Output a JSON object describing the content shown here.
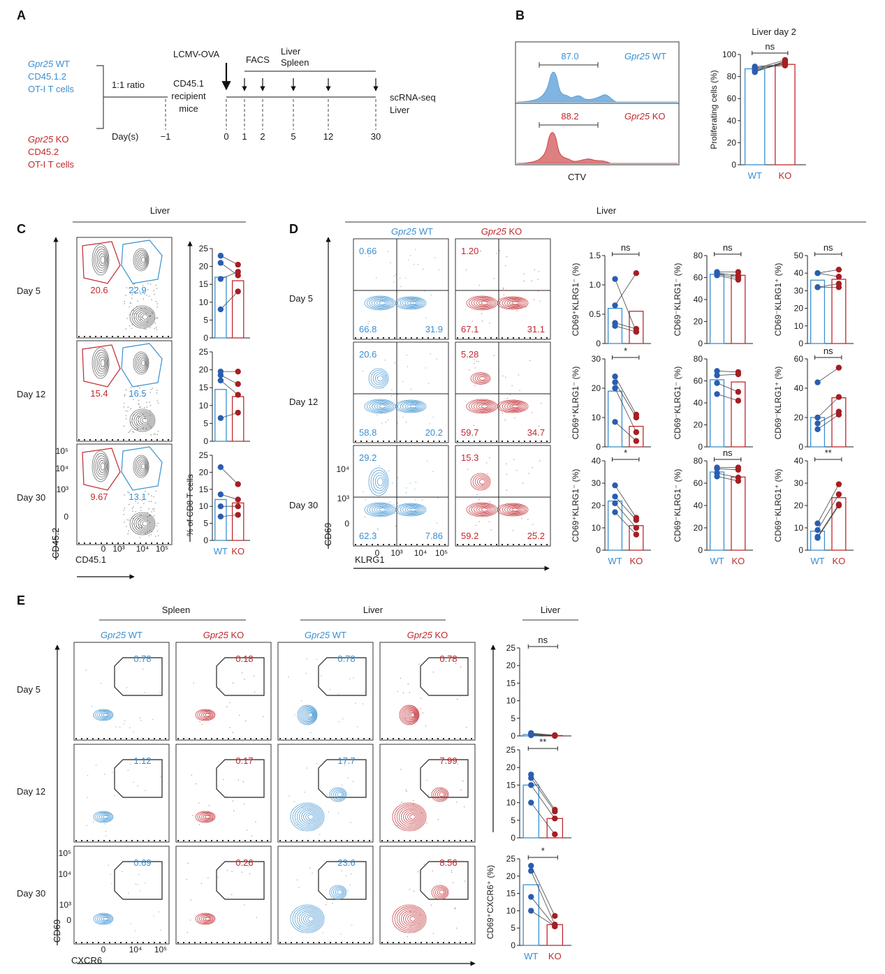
{
  "colors": {
    "wt": "#3a8fd0",
    "ko": "#c0282e",
    "wt_dot": "#2a5db0",
    "ko_dot": "#a51e22",
    "gate": "#222222"
  },
  "panels": {
    "A": {
      "label": "A",
      "wt_gene": "Gpr25",
      "wt_suffix": " WT",
      "wt_line2": "CD45.1.2",
      "wt_line3": "OT-I T cells",
      "ko_gene": "Gpr25",
      "ko_suffix": " KO",
      "ko_line2": "CD45.2",
      "ko_line3": "OT-I T cells",
      "ratio": "1:1 ratio",
      "days_label": "Day(s)",
      "recipient": [
        "CD45.1",
        "recipient",
        "mice"
      ],
      "infection": "LCMV-OVA",
      "facs": "FACS",
      "liver": "Liver",
      "spleen": "Spleen",
      "scrna": [
        "scRNA-seq",
        "Liver"
      ],
      "days": [
        "−1",
        "0",
        "1",
        "2",
        "5",
        "12",
        "30"
      ]
    },
    "B": {
      "label": "B",
      "wt_gene": "Gpr25",
      "wt_suffix": " WT",
      "ko_gene": "Gpr25",
      "ko_suffix": " KO",
      "wt_value": "87.0",
      "ko_value": "88.2",
      "xaxis": "CTV",
      "chart_title": "Liver day 2",
      "ylabel": "Proliferating cells (%)",
      "sig": "ns",
      "yticks": [
        "0",
        "20",
        "40",
        "60",
        "80",
        "100"
      ],
      "xcats": [
        "WT",
        "KO"
      ]
    },
    "C": {
      "label": "C",
      "header": "Liver",
      "rows": [
        "Day 5",
        "Day 12",
        "Day 30"
      ],
      "ko_vals": [
        "20.6",
        "15.4",
        "9.67"
      ],
      "wt_vals": [
        "22.9",
        "16.5",
        "13.1"
      ],
      "yaxis": "CD45.2",
      "xaxis": "CD45.1",
      "yticks": [
        "10⁵",
        "10⁴",
        "10³",
        "0"
      ],
      "xticks": [
        "0",
        "10³",
        "10⁴",
        "10⁵"
      ],
      "bar_ylabel": "% of CD8 T cells",
      "bar_yticks": [
        "0",
        "5",
        "10",
        "15",
        "20",
        "25"
      ],
      "xcats": [
        "WT",
        "KO"
      ]
    },
    "D": {
      "label": "D",
      "header": "Liver",
      "wt_gene": "Gpr25",
      "wt_suffix": " WT",
      "ko_gene": "Gpr25",
      "ko_suffix": " KO",
      "rows": [
        "Day 5",
        "Day 12",
        "Day 30"
      ],
      "wt_q": [
        [
          "0.66",
          "66.8",
          "31.9"
        ],
        [
          "20.6",
          "58.8",
          "20.2"
        ],
        [
          "29.2",
          "62.3",
          "7.86"
        ]
      ],
      "ko_q": [
        [
          "1.20",
          "67.1",
          "31.1"
        ],
        [
          "5.28",
          "59.7",
          "34.7"
        ],
        [
          "15.3",
          "59.2",
          "25.2"
        ]
      ],
      "yaxis": "CD69",
      "xaxis": "KLRG1",
      "yticks": [
        "10⁴",
        "10³",
        "0"
      ],
      "xticks": [
        "0",
        "10³",
        "10⁴",
        "10⁵"
      ],
      "xcats": [
        "WT",
        "KO"
      ]
    },
    "E": {
      "label": "E",
      "spleen": "Spleen",
      "liver": "Liver",
      "liver_chart": "Liver",
      "wt_gene": "Gpr25",
      "wt_suffix": " WT",
      "ko_gene": "Gpr25",
      "ko_suffix": " KO",
      "rows": [
        "Day 5",
        "Day 12",
        "Day 30"
      ],
      "vals": [
        [
          "0.78",
          "0.18",
          "0.78",
          "0.78"
        ],
        [
          "1.12",
          "0.17",
          "17.7",
          "7.99"
        ],
        [
          "0.69",
          "0.26",
          "23.6",
          "8.56"
        ]
      ],
      "yaxis": "CD69",
      "xaxis": "CXCR6",
      "yticks": [
        "10⁵",
        "10⁴",
        "10³",
        "0"
      ],
      "xticks": [
        "0",
        "10⁴",
        "10⁵"
      ],
      "xcats": [
        "WT",
        "KO"
      ]
    }
  },
  "chart_data": [
    {
      "type": "bar",
      "panel": "B",
      "title": "Liver day 2",
      "ylabel": "Proliferating cells (%)",
      "ylim": [
        0,
        100
      ],
      "yticks": [
        0,
        20,
        40,
        60,
        80,
        100
      ],
      "categories": [
        "WT",
        "KO"
      ],
      "values": [
        87,
        91
      ],
      "points": [
        [
          85,
          92
        ],
        [
          88,
          90
        ],
        [
          86,
          93
        ],
        [
          89,
          91
        ],
        [
          84,
          94
        ],
        [
          87,
          95
        ]
      ],
      "significance": "ns"
    },
    {
      "type": "bar",
      "panel": "C",
      "row": "Day 5",
      "ylabel": "% of CD8 T cells",
      "ylim": [
        0,
        25
      ],
      "yticks": [
        0,
        5,
        10,
        15,
        20,
        25
      ],
      "categories": [
        "WT",
        "KO"
      ],
      "values": [
        17,
        16
      ],
      "points": [
        [
          23,
          20.5
        ],
        [
          21,
          17.5
        ],
        [
          16.5,
          18.5
        ],
        [
          8,
          13
        ]
      ],
      "significance": ""
    },
    {
      "type": "bar",
      "panel": "C",
      "row": "Day 12",
      "ylabel": "% of CD8 T cells",
      "ylim": [
        0,
        25
      ],
      "yticks": [
        0,
        5,
        10,
        15,
        20,
        25
      ],
      "categories": [
        "WT",
        "KO"
      ],
      "values": [
        14.5,
        12.5
      ],
      "points": [
        [
          19.5,
          19.5
        ],
        [
          18.5,
          16
        ],
        [
          17,
          13
        ],
        [
          6.5,
          8
        ]
      ],
      "significance": ""
    },
    {
      "type": "bar",
      "panel": "C",
      "row": "Day 30",
      "ylabel": "% of CD8 T cells",
      "ylim": [
        0,
        25
      ],
      "yticks": [
        0,
        5,
        10,
        15,
        20,
        25
      ],
      "categories": [
        "WT",
        "KO"
      ],
      "values": [
        12,
        11
      ],
      "points": [
        [
          21.5,
          16.5
        ],
        [
          13.5,
          12
        ],
        [
          10,
          10
        ],
        [
          7,
          7.5
        ]
      ],
      "significance": ""
    },
    {
      "type": "bar",
      "panel": "D",
      "row": "Day 5",
      "ylabel": "CD69⁺KLRG1⁻ (%)",
      "ylim": [
        0,
        1.5
      ],
      "yticks": [
        0,
        0.5,
        1.0,
        1.5
      ],
      "ytick_labels": [
        "0",
        "0.5",
        "1.0",
        "1.5"
      ],
      "categories": [
        "WT",
        "KO"
      ],
      "values": [
        0.6,
        0.55
      ],
      "points": [
        [
          1.1,
          0.2
        ],
        [
          0.65,
          1.2
        ],
        [
          0.35,
          0.25
        ],
        [
          0.3,
          0.2
        ]
      ],
      "significance": "ns"
    },
    {
      "type": "bar",
      "panel": "D",
      "row": "Day 5",
      "ylabel": "CD69⁻KLRG1⁻ (%)",
      "ylim": [
        0,
        80
      ],
      "yticks": [
        0,
        20,
        40,
        60,
        80
      ],
      "categories": [
        "WT",
        "KO"
      ],
      "values": [
        63,
        62
      ],
      "points": [
        [
          65,
          65
        ],
        [
          64,
          62
        ],
        [
          63,
          60
        ],
        [
          62,
          58
        ]
      ],
      "significance": "ns"
    },
    {
      "type": "bar",
      "panel": "D",
      "row": "Day 5",
      "ylabel": "CD69⁻KLRG1⁺ (%)",
      "ylim": [
        0,
        50
      ],
      "yticks": [
        0,
        10,
        20,
        30,
        40,
        50
      ],
      "categories": [
        "WT",
        "KO"
      ],
      "values": [
        36,
        36.5
      ],
      "points": [
        [
          40,
          42
        ],
        [
          40,
          38
        ],
        [
          32,
          34
        ],
        [
          32,
          32
        ]
      ],
      "significance": "ns"
    },
    {
      "type": "bar",
      "panel": "D",
      "row": "Day 12",
      "ylabel": "CD69⁺KLRG1⁻ (%)",
      "ylim": [
        0,
        30
      ],
      "yticks": [
        0,
        10,
        20,
        30
      ],
      "categories": [
        "WT",
        "KO"
      ],
      "values": [
        19,
        7
      ],
      "points": [
        [
          24,
          11
        ],
        [
          22,
          10
        ],
        [
          20,
          5
        ],
        [
          8.5,
          2
        ]
      ],
      "significance": "*"
    },
    {
      "type": "bar",
      "panel": "D",
      "row": "Day 12",
      "ylabel": "CD69⁻KLRG1⁻ (%)",
      "ylim": [
        0,
        80
      ],
      "yticks": [
        0,
        20,
        40,
        60,
        80
      ],
      "categories": [
        "WT",
        "KO"
      ],
      "values": [
        61,
        59
      ],
      "points": [
        [
          69,
          68
        ],
        [
          65,
          66
        ],
        [
          58,
          50
        ],
        [
          48,
          42
        ]
      ],
      "significance": ""
    },
    {
      "type": "bar",
      "panel": "D",
      "row": "Day 12",
      "ylabel": "CD69⁻KLRG1⁺ (%)",
      "ylim": [
        0,
        60
      ],
      "yticks": [
        0,
        20,
        40,
        60
      ],
      "categories": [
        "WT",
        "KO"
      ],
      "values": [
        20,
        33.5
      ],
      "points": [
        [
          44,
          54
        ],
        [
          20,
          34
        ],
        [
          16,
          24
        ],
        [
          12,
          22
        ]
      ],
      "significance": "ns"
    },
    {
      "type": "bar",
      "panel": "D",
      "row": "Day 30",
      "ylabel": "CD69⁺KLRG1⁻ (%)",
      "ylim": [
        0,
        40
      ],
      "yticks": [
        0,
        10,
        20,
        30,
        40
      ],
      "categories": [
        "WT",
        "KO"
      ],
      "values": [
        22,
        11
      ],
      "points": [
        [
          29,
          14.5
        ],
        [
          24,
          13.5
        ],
        [
          21,
          10
        ],
        [
          17,
          7
        ]
      ],
      "significance": "*"
    },
    {
      "type": "bar",
      "panel": "D",
      "row": "Day 30",
      "ylabel": "CD69⁻KLRG1⁻ (%)",
      "ylim": [
        0,
        80
      ],
      "yticks": [
        0,
        20,
        40,
        60,
        80
      ],
      "categories": [
        "WT",
        "KO"
      ],
      "values": [
        70,
        65.5
      ],
      "points": [
        [
          74,
          74
        ],
        [
          73,
          72
        ],
        [
          69,
          65
        ],
        [
          66,
          62
        ]
      ],
      "significance": "ns"
    },
    {
      "type": "bar",
      "panel": "D",
      "row": "Day 30",
      "ylabel": "CD69⁻KLRG1⁺ (%)",
      "ylim": [
        0,
        40
      ],
      "yticks": [
        0,
        10,
        20,
        30,
        40
      ],
      "categories": [
        "WT",
        "KO"
      ],
      "values": [
        8.5,
        23.5
      ],
      "points": [
        [
          12,
          29.5
        ],
        [
          9,
          25
        ],
        [
          6,
          20.5
        ],
        [
          5.5,
          20
        ]
      ],
      "significance": "**"
    },
    {
      "type": "bar",
      "panel": "E",
      "row": "Day 5",
      "ylabel": "CD69⁺CXCR6⁺ (%)",
      "ylim": [
        0,
        25
      ],
      "yticks": [
        0,
        5,
        10,
        15,
        20,
        25
      ],
      "categories": [
        "WT",
        "KO"
      ],
      "values": [
        0.4,
        0.1
      ],
      "points": [
        [
          0.8,
          0.2
        ],
        [
          0.6,
          0.1
        ],
        [
          0.3,
          0.1
        ],
        [
          0.2,
          0.0
        ]
      ],
      "significance": "ns"
    },
    {
      "type": "bar",
      "panel": "E",
      "row": "Day 12",
      "ylabel": "CD69⁺CXCR6⁺ (%)",
      "ylim": [
        0,
        25
      ],
      "yticks": [
        0,
        5,
        10,
        15,
        20,
        25
      ],
      "categories": [
        "WT",
        "KO"
      ],
      "values": [
        15,
        5.5
      ],
      "points": [
        [
          18,
          8
        ],
        [
          17,
          7.5
        ],
        [
          15,
          5.5
        ],
        [
          10,
          1
        ]
      ],
      "significance": "**"
    },
    {
      "type": "bar",
      "panel": "E",
      "row": "Day 30",
      "ylabel": "CD69⁺CXCR6⁺ (%)",
      "ylim": [
        0,
        25
      ],
      "yticks": [
        0,
        5,
        10,
        15,
        20,
        25
      ],
      "categories": [
        "WT",
        "KO"
      ],
      "values": [
        17.5,
        6
      ],
      "points": [
        [
          23,
          8.5
        ],
        [
          21.5,
          6
        ],
        [
          14,
          5.5
        ],
        [
          10,
          5.5
        ]
      ],
      "significance": "*"
    }
  ]
}
